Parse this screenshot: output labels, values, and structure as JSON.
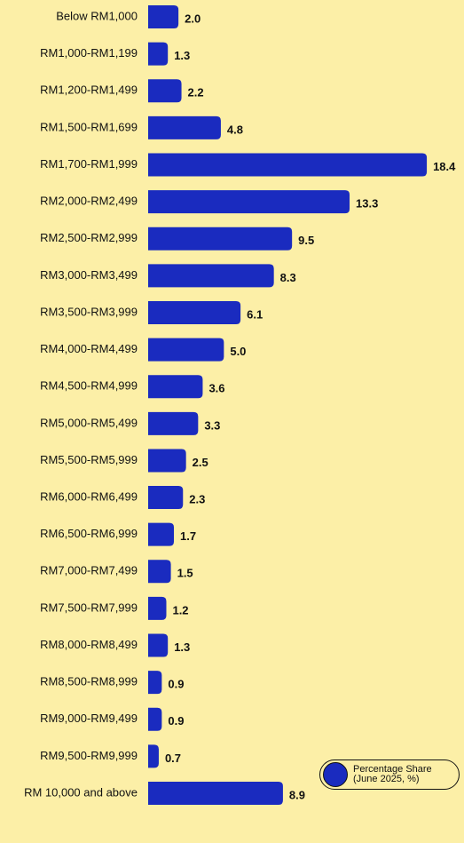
{
  "chart_data": {
    "type": "bar",
    "orientation": "horizontal",
    "categories": [
      "Below RM1,000",
      "RM1,000-RM1,199",
      "RM1,200-RM1,499",
      "RM1,500-RM1,699",
      "RM1,700-RM1,999",
      "RM2,000-RM2,499",
      "RM2,500-RM2,999",
      "RM3,000-RM3,499",
      "RM3,500-RM3,999",
      "RM4,000-RM4,499",
      "RM4,500-RM4,999",
      "RM5,000-RM5,499",
      "RM5,500-RM5,999",
      "RM6,000-RM6,499",
      "RM6,500-RM6,999",
      "RM7,000-RM7,499",
      "RM7,500-RM7,999",
      "RM8,000-RM8,499",
      "RM8,500-RM8,999",
      "RM9,000-RM9,499",
      "RM9,500-RM9,999",
      "RM 10,000 and above"
    ],
    "series": [
      {
        "name": "Percentage Share (June 2025, %)",
        "color": "#1a2bbf",
        "values": [
          2.0,
          1.3,
          2.2,
          4.8,
          18.4,
          13.3,
          9.5,
          8.3,
          6.1,
          5.0,
          3.6,
          3.3,
          2.5,
          2.3,
          1.7,
          1.5,
          1.2,
          1.3,
          0.9,
          0.9,
          0.7,
          8.9
        ],
        "value_labels": [
          "2.0",
          "1.3",
          "2.2",
          "4.8",
          "18.4",
          "13.3",
          "9.5",
          "8.3",
          "6.1",
          "5.0",
          "3.6",
          "3.3",
          "2.5",
          "2.3",
          "1.7",
          "1.5",
          "1.2",
          "1.3",
          "0.9",
          "0.9",
          "0.7",
          "8.9"
        ]
      }
    ],
    "legend": "bottom-right"
  }
}
